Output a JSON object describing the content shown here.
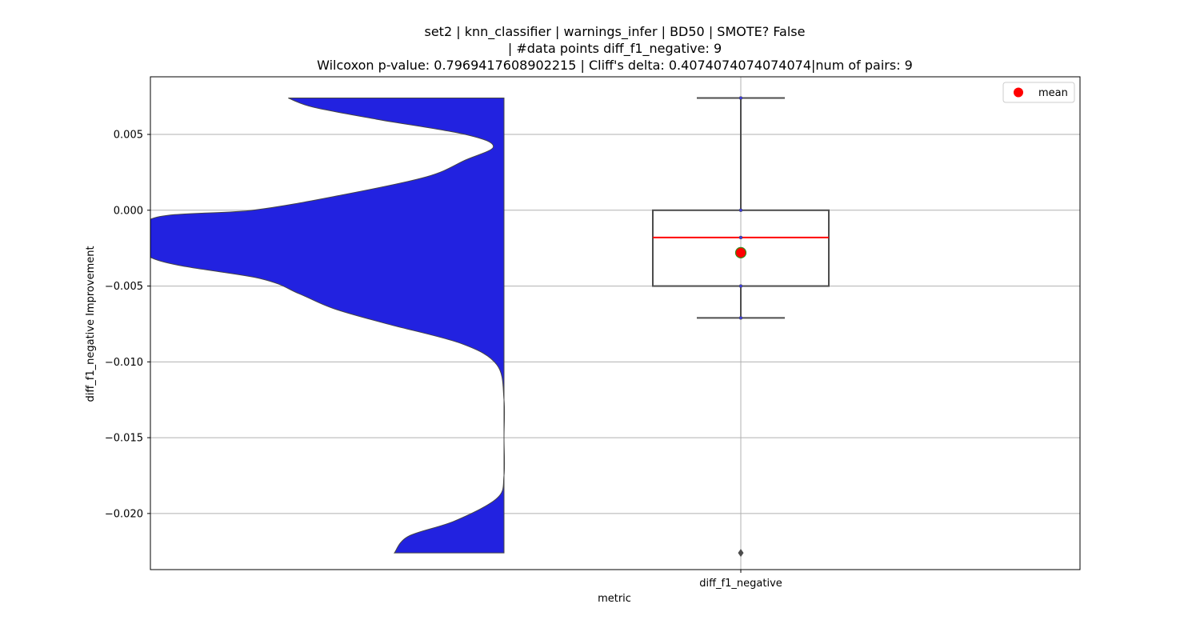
{
  "chart_data": {
    "type": "violin+box",
    "title_lines": [
      "set2 | knn_classifier | warnings_infer | BD50 | SMOTE? False",
      "| #data points diff_f1_negative: 9",
      "Wilcoxon p-value: 0.7969417608902215 | Cliff's delta: 0.4074074074074074|num of pairs: 9"
    ],
    "xlabel": "metric",
    "ylabel": "diff_f1_negative Improvement",
    "categories": [
      "diff_f1_negative"
    ],
    "ylim": [
      -0.0237,
      0.0088
    ],
    "yticks": [
      0.005,
      0.0,
      -0.005,
      -0.01,
      -0.015,
      -0.02
    ],
    "ytick_labels": [
      "0.005",
      "0.000",
      "−0.005",
      "−0.010",
      "−0.015",
      "−0.020"
    ],
    "grid": true,
    "legend": {
      "position": "top-right",
      "entries": [
        {
          "label": "mean",
          "color": "#ff0000"
        }
      ]
    },
    "box": {
      "whisker_high": 0.0074,
      "q3": 0.0,
      "median": -0.0018,
      "q1": -0.005,
      "whisker_low": -0.0071,
      "mean": -0.0028,
      "outliers": [
        -0.0226
      ]
    },
    "violin": {
      "color": "#2222e0",
      "side": "left",
      "y_range": [
        -0.0226,
        0.0074
      ],
      "density_profile": [
        {
          "y": 0.0074,
          "w": 0.61
        },
        {
          "y": 0.0068,
          "w": 0.54
        },
        {
          "y": 0.006,
          "w": 0.36
        },
        {
          "y": 0.005,
          "w": 0.11
        },
        {
          "y": 0.0042,
          "w": 0.03
        },
        {
          "y": 0.0033,
          "w": 0.11
        },
        {
          "y": 0.0022,
          "w": 0.22
        },
        {
          "y": 0.001,
          "w": 0.46
        },
        {
          "y": 0.0,
          "w": 0.71
        },
        {
          "y": -0.0006,
          "w": 1.0
        },
        {
          "y": -0.0031,
          "w": 1.0
        },
        {
          "y": -0.0045,
          "w": 0.69
        },
        {
          "y": -0.0055,
          "w": 0.58
        },
        {
          "y": -0.0065,
          "w": 0.48
        },
        {
          "y": -0.0075,
          "w": 0.33
        },
        {
          "y": -0.0088,
          "w": 0.12
        },
        {
          "y": -0.0102,
          "w": 0.02
        },
        {
          "y": -0.0125,
          "w": 0.0
        },
        {
          "y": -0.015,
          "w": 0.0
        },
        {
          "y": -0.0175,
          "w": 0.0
        },
        {
          "y": -0.019,
          "w": 0.02
        },
        {
          "y": -0.0205,
          "w": 0.14
        },
        {
          "y": -0.0215,
          "w": 0.27
        },
        {
          "y": -0.0226,
          "w": 0.31
        }
      ]
    }
  }
}
